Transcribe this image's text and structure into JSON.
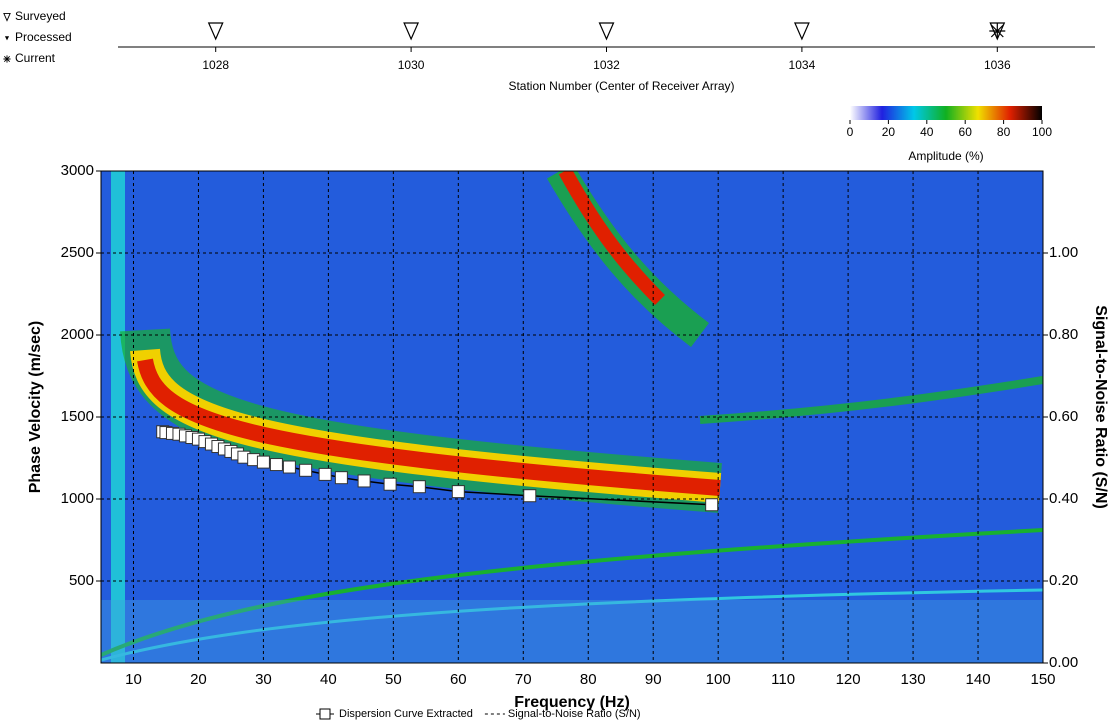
{
  "chart_data": [
    {
      "type": "scatter",
      "xlabel": "Station Number (Center of Receiver Array)",
      "xlim": [
        1027,
        1037
      ],
      "xticks": [
        1028,
        1030,
        1032,
        1034,
        1036
      ],
      "series": [
        {
          "name": "Surveyed",
          "marker": "open-triangle",
          "x": [
            1028,
            1030,
            1032,
            1034,
            1036
          ]
        },
        {
          "name": "Processed",
          "marker": "filled-triangle"
        },
        {
          "name": "Current",
          "marker": "star",
          "x": [
            1036
          ]
        }
      ]
    },
    {
      "type": "colorbar",
      "xlabel": "Amplitude (%)",
      "xlim": [
        0,
        100
      ],
      "xticks": [
        0,
        20,
        40,
        60,
        80,
        100
      ],
      "colors": [
        "#ffffff",
        "#2020e0",
        "#00c8e8",
        "#10b020",
        "#f0e000",
        "#e02000",
        "#000000"
      ]
    },
    {
      "type": "line",
      "xlabel": "Frequency (Hz)",
      "ylabel": "Phase Velocity (m/sec)",
      "y2label": "Signal-to-Noise Ratio (S/N)",
      "xlim": [
        5,
        150
      ],
      "ylim": [
        0,
        3000
      ],
      "y2lim": [
        0,
        1.2
      ],
      "xticks": [
        10,
        20,
        30,
        40,
        50,
        60,
        70,
        80,
        90,
        100,
        110,
        120,
        130,
        140,
        150
      ],
      "yticks": [
        500,
        1000,
        1500,
        2000,
        2500,
        3000
      ],
      "y2ticks": [
        {
          "value": 0,
          "label": "0.00"
        },
        {
          "value": 0.2,
          "label": "0.20"
        },
        {
          "value": 0.4,
          "label": "0.40"
        },
        {
          "value": 0.6,
          "label": "0.60"
        },
        {
          "value": 0.8,
          "label": "0.80"
        },
        {
          "value": 1,
          "label": "1.00"
        }
      ],
      "grid": true,
      "series": [
        {
          "name": "Dispersion Curve Extracted",
          "color": "#000000",
          "x": [
            14.5,
            15,
            16,
            17,
            18,
            19,
            20,
            21,
            22,
            23,
            24,
            25,
            26,
            27,
            28.5,
            30,
            32,
            34,
            36.5,
            39.5,
            42,
            45.5,
            49.5,
            54,
            60,
            71,
            99
          ],
          "values": [
            1410,
            1405,
            1400,
            1395,
            1385,
            1375,
            1365,
            1350,
            1335,
            1320,
            1305,
            1290,
            1275,
            1255,
            1240,
            1225,
            1210,
            1195,
            1175,
            1150,
            1130,
            1110,
            1090,
            1075,
            1045,
            1020,
            965
          ]
        },
        {
          "name": "Signal-to-Noise Ratio (S/N)",
          "axis": "y2",
          "color": "#000000",
          "style": "dashed"
        }
      ]
    }
  ]
}
